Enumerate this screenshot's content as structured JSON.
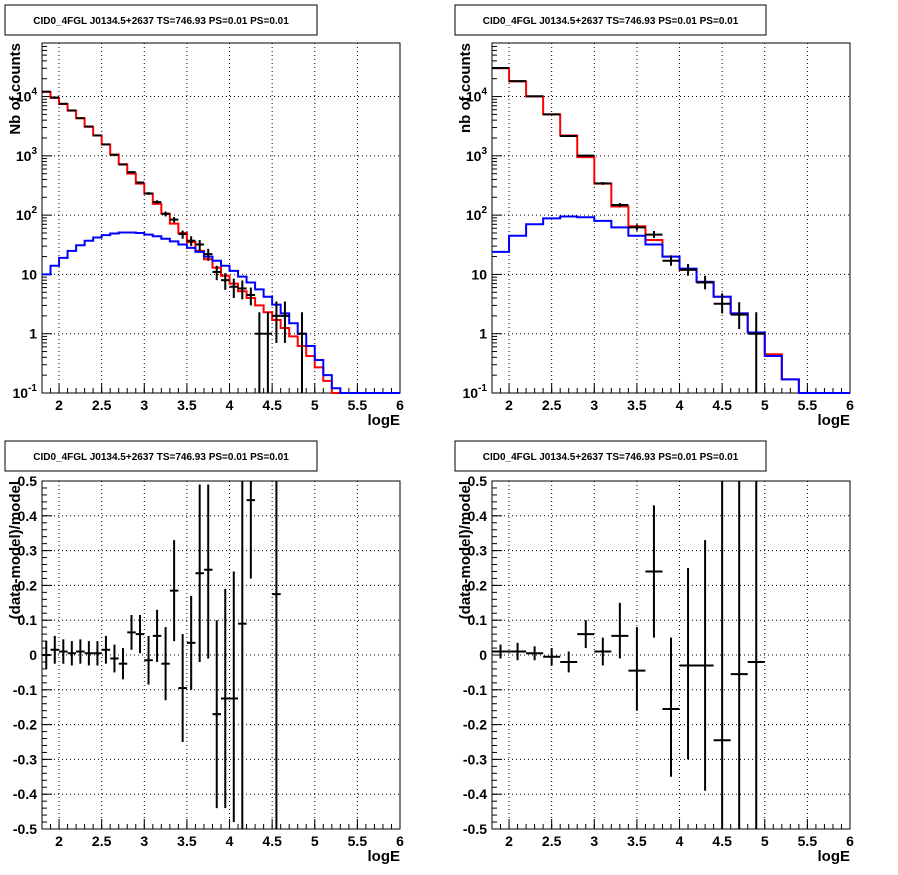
{
  "chart_data": [
    {
      "type": "line",
      "panel": "top-left",
      "title": "CID0_4FGL J0134.5+2637 TS=746.93 PS=0.01 PS=0.01",
      "xlabel": "logE",
      "ylabel": "Nb of counts",
      "xlim": [
        1.8,
        6.0
      ],
      "ylim": [
        0.1,
        80000
      ],
      "yscale": "log",
      "grid": true,
      "x_ticks": [
        "2",
        "2.5",
        "3",
        "3.5",
        "4",
        "4.5",
        "5",
        "5.5",
        "6"
      ],
      "y_ticks": [
        "10^{-1}",
        "1",
        "10",
        "10^{2}",
        "10^{3}",
        "10^{4}"
      ],
      "bin_edges": [
        1.8,
        1.9,
        2.0,
        2.1,
        2.2,
        2.3,
        2.4,
        2.5,
        2.6,
        2.7,
        2.8,
        2.9,
        3.0,
        3.1,
        3.2,
        3.3,
        3.4,
        3.5,
        3.6,
        3.7,
        3.8,
        3.9,
        4.0,
        4.1,
        4.2,
        4.3,
        4.4,
        4.5,
        4.6,
        4.7,
        4.8,
        4.9,
        5.0,
        5.1,
        5.2,
        5.3,
        5.4,
        5.5,
        5.6,
        5.7,
        5.8,
        5.9,
        6.0
      ],
      "series": [
        {
          "name": "",
          "color": "#ff0000",
          "values": [
            12000,
            9500,
            7500,
            5800,
            4300,
            3100,
            2200,
            1550,
            1050,
            720,
            500,
            340,
            230,
            155,
            106,
            72,
            50,
            35,
            25,
            18,
            13,
            9.5,
            7,
            5.2,
            4,
            3,
            2.3,
            1.7,
            1.25,
            0.9,
            0.62,
            0.42,
            0.27,
            0.16,
            0.1,
            0.1,
            0.1,
            0.1,
            0.1,
            0.1,
            0.1,
            0.1
          ]
        },
        {
          "name": "",
          "color": "#0000ff",
          "values": [
            10,
            14,
            19,
            25,
            31,
            37,
            42,
            46,
            49,
            51,
            51,
            50,
            47,
            44,
            40,
            36,
            32,
            28,
            24,
            20,
            17,
            14,
            11.5,
            9.2,
            7.3,
            5.6,
            4.2,
            3.1,
            2.2,
            1.5,
            1.0,
            0.62,
            0.36,
            0.2,
            0.12,
            0.1,
            0.1,
            0.1,
            0.1,
            0.1,
            0.1,
            0.1
          ]
        }
      ],
      "data_points": {
        "color": "#000000",
        "x": [
          1.85,
          1.95,
          2.05,
          2.15,
          2.25,
          2.35,
          2.45,
          2.55,
          2.65,
          2.75,
          2.85,
          2.95,
          3.05,
          3.15,
          3.25,
          3.35,
          3.45,
          3.55,
          3.65,
          3.75,
          3.85,
          3.95,
          4.05,
          4.15,
          4.25,
          4.35,
          4.45,
          4.55,
          4.65,
          4.75,
          4.85
        ],
        "y": [
          12100,
          9600,
          7560,
          5830,
          4320,
          3120,
          2210,
          1560,
          1040,
          715,
          530,
          355,
          232,
          166,
          105,
          84,
          48,
          37,
          32,
          22,
          11,
          8,
          6.2,
          5.8,
          4.5,
          1.0,
          1.0,
          2.0,
          2.0,
          0.0,
          1.0
        ],
        "y_low": [
          12000,
          9500,
          7470,
          5750,
          4250,
          3060,
          2160,
          1520,
          1010,
          690,
          510,
          340,
          220,
          155,
          95,
          75,
          40,
          30,
          25,
          17,
          8,
          5.5,
          4,
          3.8,
          3,
          0.1,
          0.1,
          0.7,
          0.7,
          0.0,
          0.1
        ],
        "y_high": [
          12200,
          9700,
          7650,
          5910,
          4390,
          3180,
          2260,
          1600,
          1070,
          740,
          550,
          370,
          245,
          178,
          115,
          93,
          55,
          44,
          38,
          27,
          14,
          10.5,
          8.5,
          7.9,
          6,
          2.3,
          2.3,
          3.5,
          3.5,
          0.0,
          2.3
        ]
      }
    },
    {
      "type": "line",
      "panel": "top-right",
      "title": "CID0_4FGL J0134.5+2637 TS=746.93 PS=0.01 PS=0.01",
      "xlabel": "logE",
      "ylabel": "nb of counts",
      "xlim": [
        1.8,
        6.0
      ],
      "ylim": [
        0.1,
        80000
      ],
      "yscale": "log",
      "grid": true,
      "x_ticks": [
        "2",
        "2.5",
        "3",
        "3.5",
        "4",
        "4.5",
        "5",
        "5.5",
        "6"
      ],
      "y_ticks": [
        "10^{-1}",
        "1",
        "10",
        "10^{2}",
        "10^{3}",
        "10^{4}"
      ],
      "bin_edges": [
        1.8,
        2.0,
        2.2,
        2.4,
        2.6,
        2.8,
        3.0,
        3.2,
        3.4,
        3.6,
        3.8,
        4.0,
        4.2,
        4.4,
        4.6,
        4.8,
        5.0,
        5.2,
        5.4,
        5.6,
        5.8,
        6.0
      ],
      "series": [
        {
          "name": "",
          "color": "#ff0000",
          "values": [
            30000,
            18000,
            10000,
            5000,
            2200,
            950,
            340,
            140,
            65,
            38,
            20,
            12,
            7.5,
            4.2,
            2.2,
            1.05,
            0.45,
            0.17,
            0.1,
            0.1,
            0.1
          ]
        },
        {
          "name": "",
          "color": "#0000ff",
          "values": [
            24,
            45,
            70,
            88,
            95,
            92,
            80,
            62,
            45,
            32,
            20,
            12.5,
            7.5,
            4.2,
            2.2,
            1.05,
            0.42,
            0.17,
            0.1,
            0.1,
            0.1
          ]
        }
      ],
      "data_points": {
        "color": "#000000",
        "x": [
          1.9,
          2.1,
          2.3,
          2.5,
          2.7,
          2.9,
          3.1,
          3.3,
          3.5,
          3.7,
          3.9,
          4.1,
          4.3,
          4.5,
          4.7,
          4.9
        ],
        "y": [
          30300,
          18200,
          10100,
          5000,
          2160,
          1010,
          343,
          148,
          62,
          47,
          17,
          12,
          7.3,
          3.2,
          2.1,
          1.0
        ],
        "y_low": [
          30100,
          18000,
          10000,
          4930,
          2110,
          980,
          325,
          136,
          55,
          41,
          14,
          9.5,
          5.6,
          2.2,
          1.2,
          0.1
        ],
        "y_high": [
          30500,
          18400,
          10200,
          5070,
          2210,
          1040,
          362,
          160,
          70,
          54,
          21,
          15,
          9.5,
          4.8,
          3.4,
          2.3
        ]
      }
    },
    {
      "type": "scatter",
      "panel": "bottom-left",
      "title": "CID0_4FGL J0134.5+2637 TS=746.93 PS=0.01 PS=0.01",
      "xlabel": "logE",
      "ylabel": "(data-model)/model",
      "xlim": [
        1.8,
        6.0
      ],
      "ylim": [
        -0.5,
        0.5
      ],
      "grid": true,
      "x_ticks": [
        "2",
        "2.5",
        "3",
        "3.5",
        "4",
        "4.5",
        "5",
        "5.5",
        "6"
      ],
      "y_ticks": [
        "-0.5",
        "-0.4",
        "-0.3",
        "-0.2",
        "-0.1",
        "0",
        "0.1",
        "0.2",
        "0.3",
        "0.4",
        "0.5"
      ],
      "x_halfwidth": 0.05,
      "points": {
        "x": [
          1.85,
          1.95,
          2.05,
          2.15,
          2.25,
          2.35,
          2.45,
          2.55,
          2.65,
          2.75,
          2.85,
          2.95,
          3.05,
          3.15,
          3.25,
          3.35,
          3.45,
          3.55,
          3.65,
          3.75,
          3.85,
          3.95,
          4.05,
          4.15,
          4.25,
          4.55
        ],
        "y": [
          0.0,
          0.015,
          0.01,
          0.005,
          0.01,
          0.005,
          0.005,
          0.015,
          -0.01,
          -0.025,
          0.065,
          0.06,
          -0.015,
          0.055,
          -0.025,
          0.185,
          -0.095,
          0.035,
          0.235,
          0.245,
          -0.17,
          -0.125,
          -0.125,
          0.09,
          0.445,
          0.175
        ],
        "y_low": [
          -0.04,
          -0.025,
          -0.025,
          -0.03,
          -0.025,
          -0.03,
          -0.03,
          -0.025,
          -0.05,
          -0.07,
          0.015,
          0.005,
          -0.085,
          -0.02,
          -0.13,
          0.04,
          -0.25,
          -0.1,
          -0.02,
          -0.01,
          -0.44,
          -0.44,
          -0.48,
          -0.5,
          0.22,
          -0.5
        ],
        "y_high": [
          0.04,
          0.055,
          0.045,
          0.04,
          0.045,
          0.04,
          0.04,
          0.055,
          0.03,
          0.02,
          0.115,
          0.115,
          0.055,
          0.13,
          0.08,
          0.33,
          0.06,
          0.17,
          0.49,
          0.49,
          0.1,
          0.19,
          0.24,
          0.5,
          0.5,
          0.5
        ]
      }
    },
    {
      "type": "scatter",
      "panel": "bottom-right",
      "title": "CID0_4FGL J0134.5+2637 TS=746.93 PS=0.01 PS=0.01",
      "xlabel": "logE",
      "ylabel": "(data-model)/model",
      "xlim": [
        1.8,
        6.0
      ],
      "ylim": [
        -0.5,
        0.5
      ],
      "grid": true,
      "x_ticks": [
        "2",
        "2.5",
        "3",
        "3.5",
        "4",
        "4.5",
        "5",
        "5.5",
        "6"
      ],
      "y_ticks": [
        "-0.5",
        "-0.4",
        "-0.3",
        "-0.2",
        "-0.1",
        "0",
        "0.1",
        "0.2",
        "0.3",
        "0.4",
        "0.5"
      ],
      "x_halfwidth": 0.1,
      "points": {
        "x": [
          1.9,
          2.1,
          2.3,
          2.5,
          2.7,
          2.9,
          3.1,
          3.3,
          3.5,
          3.7,
          3.9,
          4.1,
          4.3,
          4.5,
          4.7,
          4.9
        ],
        "y": [
          0.01,
          0.01,
          0.005,
          -0.005,
          -0.02,
          0.06,
          0.01,
          0.055,
          -0.045,
          0.24,
          -0.155,
          -0.03,
          -0.03,
          -0.245,
          -0.055,
          -0.02
        ],
        "y_low": [
          -0.01,
          -0.015,
          -0.015,
          -0.03,
          -0.05,
          0.02,
          -0.03,
          -0.01,
          -0.16,
          0.05,
          -0.35,
          -0.3,
          -0.39,
          -0.5,
          -0.5,
          -0.5
        ],
        "y_high": [
          0.03,
          0.035,
          0.025,
          0.02,
          0.01,
          0.1,
          0.05,
          0.15,
          0.08,
          0.43,
          0.05,
          0.25,
          0.33,
          0.5,
          0.5,
          0.5
        ]
      }
    }
  ]
}
